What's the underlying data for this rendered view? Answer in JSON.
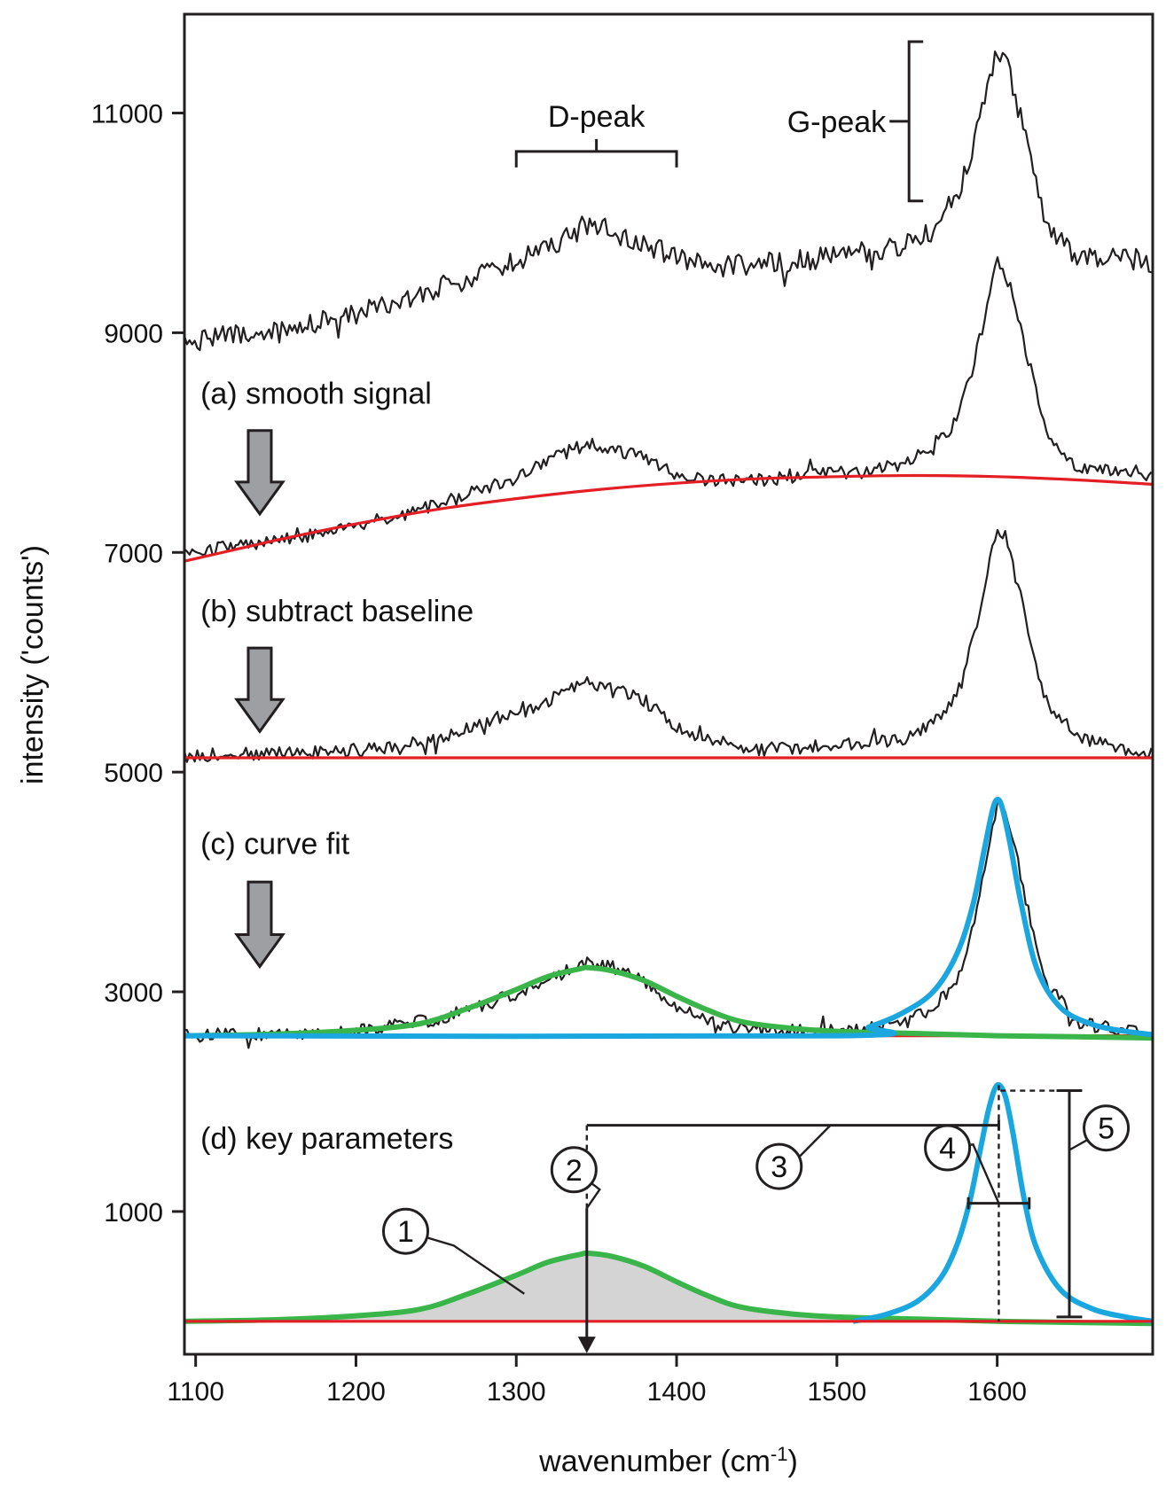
{
  "chart_data": {
    "type": "line",
    "title": "",
    "xlabel": "wavenumber (cm",
    "xlabel_superscript": "-1",
    "xlabel_suffix": ")",
    "ylabel": "intensity ('counts')",
    "xlim": [
      1093,
      1697
    ],
    "ylim": [
      -300,
      11900
    ],
    "x_ticks": [
      1100,
      1200,
      1300,
      1400,
      1500,
      1600
    ],
    "y_ticks": [
      1000,
      3000,
      5000,
      7000,
      9000,
      11000
    ],
    "grid": false,
    "legend": "none",
    "colors": {
      "raw": "#231f20",
      "baseline": "#e31e24",
      "d_fit": "#3ab54a",
      "g_fit": "#1aa7e0",
      "fill": "#d4d4d4",
      "arrow": "#9d9fa2"
    },
    "series": [
      {
        "id": "raw-spectrum",
        "style": "raw",
        "noise": 100,
        "x": [
          1093,
          1150,
          1200,
          1250,
          1300,
          1330,
          1345,
          1360,
          1380,
          1400,
          1420,
          1450,
          1500,
          1540,
          1560,
          1575,
          1585,
          1595,
          1600,
          1605,
          1610,
          1620,
          1630,
          1650,
          1680,
          1697
        ],
        "y": [
          8930,
          9000,
          9180,
          9400,
          9640,
          9850,
          10000,
          9920,
          9820,
          9670,
          9600,
          9620,
          9700,
          9780,
          9920,
          10200,
          10700,
          11300,
          11600,
          11500,
          11250,
          10600,
          10000,
          9700,
          9680,
          9640
        ]
      },
      {
        "id": "smoothed-spectrum",
        "style": "raw",
        "noise": 60,
        "x": [
          1093,
          1150,
          1200,
          1250,
          1300,
          1330,
          1345,
          1360,
          1380,
          1400,
          1420,
          1450,
          1500,
          1540,
          1560,
          1575,
          1585,
          1595,
          1600,
          1605,
          1610,
          1620,
          1630,
          1650,
          1680,
          1697
        ],
        "y": [
          7000,
          7100,
          7230,
          7430,
          7680,
          7900,
          8000,
          7950,
          7850,
          7720,
          7650,
          7660,
          7720,
          7800,
          7940,
          8200,
          8700,
          9300,
          9640,
          9550,
          9320,
          8700,
          8100,
          7780,
          7710,
          7700
        ]
      },
      {
        "id": "baseline-a",
        "style": "baseline",
        "noise": 0,
        "x": [
          1093,
          1150,
          1200,
          1250,
          1300,
          1350,
          1400,
          1450,
          1500,
          1550,
          1600,
          1650,
          1697
        ],
        "y": [
          6920,
          7110,
          7260,
          7390,
          7490,
          7570,
          7630,
          7670,
          7690,
          7700,
          7690,
          7660,
          7620
        ]
      },
      {
        "id": "corrected-spectrum",
        "style": "raw",
        "noise": 60,
        "x": [
          1093,
          1150,
          1200,
          1250,
          1300,
          1330,
          1345,
          1360,
          1380,
          1400,
          1420,
          1450,
          1500,
          1540,
          1560,
          1575,
          1585,
          1595,
          1600,
          1605,
          1610,
          1620,
          1630,
          1650,
          1680,
          1697
        ],
        "y": [
          5150,
          5170,
          5190,
          5300,
          5520,
          5720,
          5820,
          5760,
          5650,
          5420,
          5280,
          5210,
          5240,
          5300,
          5440,
          5700,
          6200,
          6900,
          7220,
          7140,
          6900,
          6250,
          5650,
          5330,
          5200,
          5180
        ]
      },
      {
        "id": "baseline-b",
        "style": "baseline",
        "noise": 0,
        "x": [
          1093,
          1697
        ],
        "y": [
          5130,
          5130
        ]
      },
      {
        "id": "fit-data",
        "style": "raw",
        "noise": 60,
        "x": [
          1093,
          1150,
          1200,
          1250,
          1300,
          1330,
          1345,
          1360,
          1380,
          1400,
          1420,
          1450,
          1500,
          1540,
          1560,
          1575,
          1585,
          1595,
          1600,
          1605,
          1610,
          1620,
          1630,
          1650,
          1680,
          1697
        ],
        "y": [
          2600,
          2620,
          2640,
          2750,
          2980,
          3180,
          3270,
          3220,
          3090,
          2880,
          2720,
          2650,
          2640,
          2700,
          2850,
          3100,
          3600,
          4300,
          4750,
          4650,
          4400,
          3700,
          3100,
          2720,
          2640,
          2620
        ]
      },
      {
        "id": "baseline-c",
        "style": "baseline",
        "noise": 0,
        "x": [
          1093,
          1697
        ],
        "y": [
          2600,
          2600
        ]
      },
      {
        "id": "d-fit-c",
        "style": "d_fit",
        "noise": 0,
        "x": [
          1093,
          1150,
          1200,
          1240,
          1270,
          1300,
          1320,
          1340,
          1345,
          1360,
          1380,
          1400,
          1420,
          1440,
          1470,
          1500,
          1550,
          1600,
          1650,
          1697
        ],
        "y": [
          2600,
          2615,
          2650,
          2710,
          2850,
          3020,
          3140,
          3210,
          3220,
          3190,
          3100,
          2960,
          2830,
          2730,
          2670,
          2640,
          2620,
          2600,
          2590,
          2580
        ]
      },
      {
        "id": "g-fit-c",
        "style": "g_fit",
        "noise": 0,
        "x": [
          1093,
          1500,
          1520,
          1540,
          1560,
          1575,
          1585,
          1592,
          1597,
          1600,
          1603,
          1608,
          1615,
          1625,
          1640,
          1660,
          1680,
          1697
        ],
        "y": [
          2600,
          2600,
          2680,
          2800,
          3000,
          3350,
          3800,
          4300,
          4650,
          4750,
          4680,
          4350,
          3800,
          3200,
          2850,
          2700,
          2640,
          2610
        ]
      },
      {
        "id": "d-fill",
        "style": "fill",
        "noise": 0,
        "x": [
          1093,
          1150,
          1200,
          1240,
          1270,
          1300,
          1320,
          1340,
          1345,
          1360,
          1380,
          1400,
          1420,
          1440,
          1470,
          1500,
          1550,
          1600,
          1650,
          1697
        ],
        "y": [
          0,
          15,
          50,
          110,
          250,
          420,
          540,
          610,
          620,
          590,
          500,
          360,
          230,
          130,
          70,
          40,
          20,
          0,
          -10,
          -20
        ]
      },
      {
        "id": "d-fit-d",
        "style": "d_fit",
        "noise": 0,
        "x": [
          1093,
          1150,
          1200,
          1240,
          1270,
          1300,
          1320,
          1340,
          1345,
          1360,
          1380,
          1400,
          1420,
          1440,
          1470,
          1500,
          1550,
          1600,
          1650,
          1697
        ],
        "y": [
          0,
          15,
          50,
          110,
          250,
          420,
          540,
          610,
          620,
          590,
          500,
          360,
          230,
          130,
          70,
          40,
          20,
          0,
          -10,
          -20
        ]
      },
      {
        "id": "g-fit-d",
        "style": "g_fit",
        "noise": 0,
        "x": [
          1510,
          1530,
          1550,
          1565,
          1575,
          1583,
          1590,
          1595,
          1600,
          1605,
          1610,
          1617,
          1625,
          1640,
          1660,
          1680,
          1697
        ],
        "y": [
          0,
          60,
          180,
          400,
          700,
          1100,
          1600,
          1950,
          2150,
          2050,
          1700,
          1100,
          650,
          280,
          110,
          40,
          0
        ]
      },
      {
        "id": "baseline-d",
        "style": "baseline",
        "noise": 0,
        "x": [
          1093,
          1697
        ],
        "y": [
          0,
          0
        ]
      }
    ],
    "annotations": {
      "d_peak": {
        "label": "D-peak",
        "x_start": 1300,
        "x_end": 1400,
        "y": 10650
      },
      "g_peak": {
        "label": "G-peak",
        "x": 1545,
        "y_top": 11650,
        "y_bottom": 10200
      },
      "steps": [
        {
          "label": "(a) smooth signal",
          "x": 1103,
          "y": 8450,
          "arrow_y_top": 8110,
          "arrow_y_bottom": 7350
        },
        {
          "label": "(b) subtract baseline",
          "x": 1103,
          "y": 6470,
          "arrow_y_top": 6130,
          "arrow_y_bottom": 5370
        },
        {
          "label": "(c) curve fit",
          "x": 1103,
          "y": 4350,
          "arrow_y_top": 4000,
          "arrow_y_bottom": 3230
        },
        {
          "label": "(d) key parameters",
          "x": 1103,
          "y": 1670,
          "arrow_y_top": 0,
          "arrow_y_bottom": 0
        }
      ],
      "markers": [
        {
          "label": "1",
          "x": 1231,
          "y": 820
        },
        {
          "label": "2",
          "x": 1336,
          "y": 1380
        },
        {
          "label": "3",
          "x": 1464,
          "y": 1410
        },
        {
          "label": "4",
          "x": 1569,
          "y": 1580
        },
        {
          "label": "5",
          "x": 1668,
          "y": 1760
        }
      ]
    }
  }
}
